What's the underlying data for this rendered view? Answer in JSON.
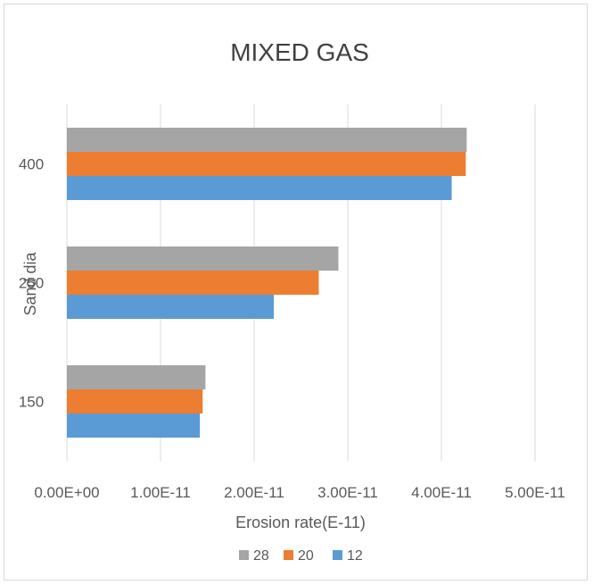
{
  "chart_data": {
    "type": "bar",
    "orientation": "horizontal",
    "title": "MIXED GAS",
    "xlabel": "Erosion rate(E-11)",
    "ylabel": "Sand dia",
    "categories": [
      "150",
      "250",
      "400"
    ],
    "xlim": [
      0,
      5e-11
    ],
    "xticks": [
      "0.00E+00",
      "1.00E-11",
      "2.00E-11",
      "3.00E-11",
      "4.00E-11",
      "5.00E-11"
    ],
    "grid": true,
    "legend_position": "bottom",
    "series": [
      {
        "name": "28",
        "color": "#a5a5a5",
        "values": [
          1.48e-11,
          2.9e-11,
          4.27e-11
        ]
      },
      {
        "name": "20",
        "color": "#ed7d31",
        "values": [
          1.45e-11,
          2.69e-11,
          4.26e-11
        ]
      },
      {
        "name": "12",
        "color": "#5b9bd5",
        "values": [
          1.42e-11,
          2.21e-11,
          4.11e-11
        ]
      }
    ]
  }
}
